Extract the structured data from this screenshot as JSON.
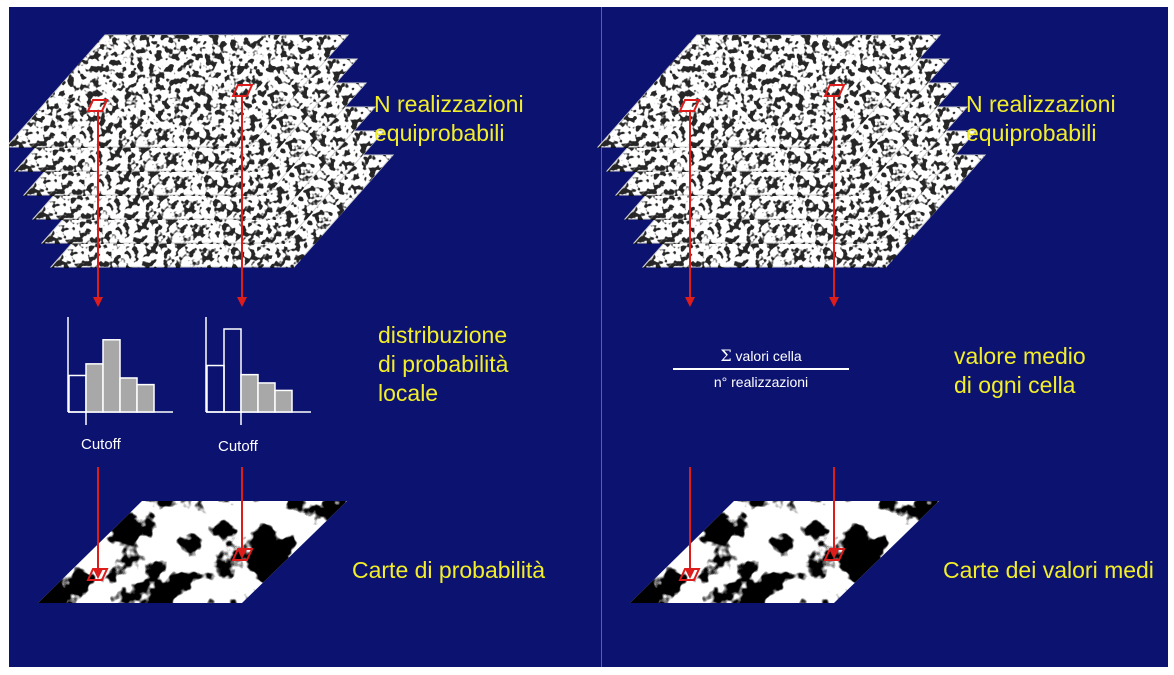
{
  "colors": {
    "background": "#0c1270",
    "label_text": "#f2ee28",
    "arrow": "#dd1c1c",
    "histogram_bar": "#a8a8a8",
    "formula_text": "#ffffff"
  },
  "left_panel": {
    "stack_label": "N realizzazioni\nequiprobabili",
    "distribution_label": "distribuzione\ndi probabilità\nlocale",
    "map_label": "Carte di probabilità",
    "cutoff_labels": [
      "Cutoff",
      "Cutoff"
    ],
    "histograms": [
      {
        "heights": [
          0.44,
          0.58,
          0.87,
          0.41,
          0.33
        ],
        "cutoff_index": 1
      },
      {
        "heights": [
          0.56,
          1.0,
          0.45,
          0.35,
          0.26
        ],
        "cutoff_index": 2
      }
    ]
  },
  "right_panel": {
    "stack_label": "N realizzazioni\nequiprobabili",
    "formula_sigma": "Σ",
    "formula_numerator": "valori cella",
    "formula_denominator": "n° realizzazioni",
    "mean_label": "valore medio\ndi ogni cella",
    "map_label": "Carte dei valori medi"
  }
}
